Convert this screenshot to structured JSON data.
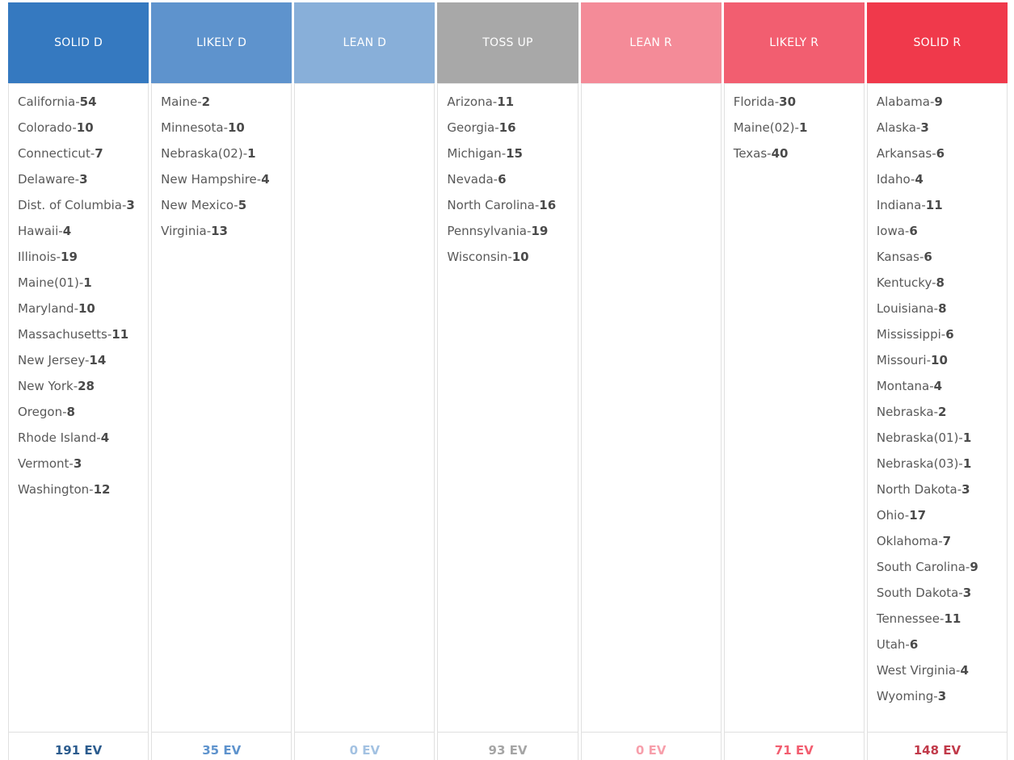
{
  "separator": "-",
  "ev_suffix": "EV",
  "columns": [
    {
      "label": "SOLID D",
      "header_color": "#3579c0",
      "footer_color": "#2c5c8e",
      "total": "191 EV",
      "states": [
        {
          "name": "California",
          "ev": 54
        },
        {
          "name": "Colorado",
          "ev": 10
        },
        {
          "name": "Connecticut",
          "ev": 7
        },
        {
          "name": "Delaware",
          "ev": 3
        },
        {
          "name": "Dist. of Columbia",
          "ev": 3
        },
        {
          "name": "Hawaii",
          "ev": 4
        },
        {
          "name": "Illinois",
          "ev": 19
        },
        {
          "name": "Maine(01)",
          "ev": 1
        },
        {
          "name": "Maryland",
          "ev": 10
        },
        {
          "name": "Massachusetts",
          "ev": 11
        },
        {
          "name": "New Jersey",
          "ev": 14
        },
        {
          "name": "New York",
          "ev": 28
        },
        {
          "name": "Oregon",
          "ev": 8
        },
        {
          "name": "Rhode Island",
          "ev": 4
        },
        {
          "name": "Vermont",
          "ev": 3
        },
        {
          "name": "Washington",
          "ev": 12
        }
      ]
    },
    {
      "label": "LIKELY D",
      "header_color": "#5e93cd",
      "footer_color": "#5e93cd",
      "total": "35 EV",
      "states": [
        {
          "name": "Maine",
          "ev": 2
        },
        {
          "name": "Minnesota",
          "ev": 10
        },
        {
          "name": "Nebraska(02)",
          "ev": 1
        },
        {
          "name": "New Hampshire",
          "ev": 4
        },
        {
          "name": "New Mexico",
          "ev": 5
        },
        {
          "name": "Virginia",
          "ev": 13
        }
      ]
    },
    {
      "label": "LEAN D",
      "header_color": "#88afd9",
      "footer_color": "#a3c2e2",
      "total": "0 EV",
      "states": []
    },
    {
      "label": "TOSS UP",
      "header_color": "#a8a8a8",
      "footer_color": "#a5a5a5",
      "total": "93 EV",
      "states": [
        {
          "name": "Arizona",
          "ev": 11
        },
        {
          "name": "Georgia",
          "ev": 16
        },
        {
          "name": "Michigan",
          "ev": 15
        },
        {
          "name": "Nevada",
          "ev": 6
        },
        {
          "name": "North Carolina",
          "ev": 16
        },
        {
          "name": "Pennsylvania",
          "ev": 19
        },
        {
          "name": "Wisconsin",
          "ev": 10
        }
      ]
    },
    {
      "label": "LEAN R",
      "header_color": "#f48b98",
      "footer_color": "#f79fab",
      "total": "0 EV",
      "states": []
    },
    {
      "label": "LIKELY R",
      "header_color": "#f25e70",
      "footer_color": "#f25e70",
      "total": "71 EV",
      "states": [
        {
          "name": "Florida",
          "ev": 30
        },
        {
          "name": "Maine(02)",
          "ev": 1
        },
        {
          "name": "Texas",
          "ev": 40
        }
      ]
    },
    {
      "label": "SOLID R",
      "header_color": "#f0394b",
      "footer_color": "#c13a4a",
      "total": "148 EV",
      "states": [
        {
          "name": "Alabama",
          "ev": 9
        },
        {
          "name": "Alaska",
          "ev": 3
        },
        {
          "name": "Arkansas",
          "ev": 6
        },
        {
          "name": "Idaho",
          "ev": 4
        },
        {
          "name": "Indiana",
          "ev": 11
        },
        {
          "name": "Iowa",
          "ev": 6
        },
        {
          "name": "Kansas",
          "ev": 6
        },
        {
          "name": "Kentucky",
          "ev": 8
        },
        {
          "name": "Louisiana",
          "ev": 8
        },
        {
          "name": "Mississippi",
          "ev": 6
        },
        {
          "name": "Missouri",
          "ev": 10
        },
        {
          "name": "Montana",
          "ev": 4
        },
        {
          "name": "Nebraska",
          "ev": 2
        },
        {
          "name": "Nebraska(01)",
          "ev": 1
        },
        {
          "name": "Nebraska(03)",
          "ev": 1
        },
        {
          "name": "North Dakota",
          "ev": 3
        },
        {
          "name": "Ohio",
          "ev": 17
        },
        {
          "name": "Oklahoma",
          "ev": 7
        },
        {
          "name": "South Carolina",
          "ev": 9
        },
        {
          "name": "South Dakota",
          "ev": 3
        },
        {
          "name": "Tennessee",
          "ev": 11
        },
        {
          "name": "Utah",
          "ev": 6
        },
        {
          "name": "West Virginia",
          "ev": 4
        },
        {
          "name": "Wyoming",
          "ev": 3
        }
      ]
    }
  ]
}
